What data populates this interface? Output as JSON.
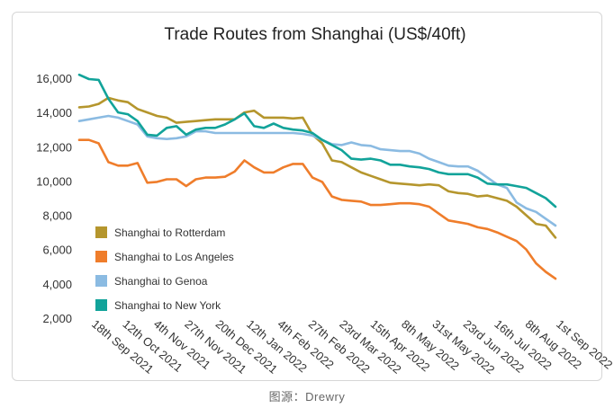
{
  "chart_data": {
    "type": "line",
    "title": "Trade Routes from Shanghai (US$/40ft)",
    "ylim": [
      2000,
      16000
    ],
    "y_ticks": [
      "16,000",
      "14,000",
      "12,000",
      "10,000",
      "8,000",
      "6,000",
      "4,000",
      "2,000"
    ],
    "y_tick_values": [
      16000,
      14000,
      12000,
      10000,
      8000,
      6000,
      4000,
      2000
    ],
    "x_tick_labels": [
      "18th Sep 2021",
      "12th Oct 2021",
      "4th Nov 2021",
      "27th Nov 2021",
      "20th Dec 2021",
      "12th Jan 2022",
      "4th Feb 2022",
      "27th Feb 2022",
      "23rd Mar 2022",
      "15th Apr 2022",
      "8th May 2022",
      "31st May 2022",
      "23rd Jun 2022",
      "16th Jul 2022",
      "8th Aug 2022",
      "1st Sep 2022"
    ],
    "grid": false,
    "legend_position": "bottom-left",
    "series": [
      {
        "name": "Shanghai to Rotterdam",
        "color": "#b5962d",
        "values": [
          14300,
          14350,
          14500,
          14850,
          14700,
          14600,
          14200,
          14000,
          13800,
          13700,
          13400,
          13450,
          13500,
          13550,
          13600,
          13600,
          13600,
          14000,
          14100,
          13700,
          13700,
          13700,
          13650,
          13700,
          12700,
          12200,
          11200,
          11100,
          10800,
          10500,
          10300,
          10100,
          9900,
          9850,
          9800,
          9750,
          9800,
          9750,
          9400,
          9300,
          9250,
          9100,
          9150,
          9000,
          8850,
          8500,
          8000,
          7500,
          7400,
          6700
        ]
      },
      {
        "name": "Shanghai to Los Angeles",
        "color": "#ef7d2b",
        "values": [
          12400,
          12400,
          12200,
          11100,
          10900,
          10900,
          11050,
          9900,
          9950,
          10100,
          10100,
          9700,
          10100,
          10200,
          10200,
          10250,
          10550,
          11200,
          10800,
          10500,
          10500,
          10800,
          11000,
          11000,
          10200,
          9950,
          9100,
          8900,
          8850,
          8800,
          8600,
          8600,
          8650,
          8700,
          8700,
          8650,
          8500,
          8100,
          7700,
          7600,
          7500,
          7300,
          7200,
          7000,
          6750,
          6500,
          6000,
          5200,
          4700,
          4300
        ]
      },
      {
        "name": "Shanghai to Genoa",
        "color": "#8bbbe2",
        "values": [
          13500,
          13600,
          13700,
          13800,
          13700,
          13500,
          13300,
          12600,
          12500,
          12450,
          12500,
          12600,
          12900,
          12900,
          12800,
          12800,
          12800,
          12800,
          12800,
          12800,
          12800,
          12800,
          12800,
          12750,
          12650,
          12400,
          12150,
          12100,
          12250,
          12100,
          12050,
          11850,
          11800,
          11750,
          11750,
          11600,
          11300,
          11100,
          10900,
          10850,
          10850,
          10600,
          10200,
          9800,
          9600,
          8750,
          8400,
          8200,
          7800,
          7400
        ]
      },
      {
        "name": "Shanghai to New York",
        "color": "#12a39a",
        "values": [
          16200,
          15950,
          15900,
          14800,
          14000,
          13900,
          13500,
          12700,
          12650,
          13100,
          13200,
          12700,
          13000,
          13100,
          13100,
          13300,
          13600,
          13950,
          13200,
          13100,
          13350,
          13100,
          13000,
          12950,
          12800,
          12400,
          12100,
          11800,
          11300,
          11250,
          11300,
          11200,
          10950,
          10950,
          10850,
          10800,
          10700,
          10500,
          10400,
          10400,
          10400,
          10200,
          9850,
          9800,
          9800,
          9700,
          9600,
          9300,
          9000,
          8500
        ]
      }
    ]
  },
  "source": "图源：Drewry"
}
